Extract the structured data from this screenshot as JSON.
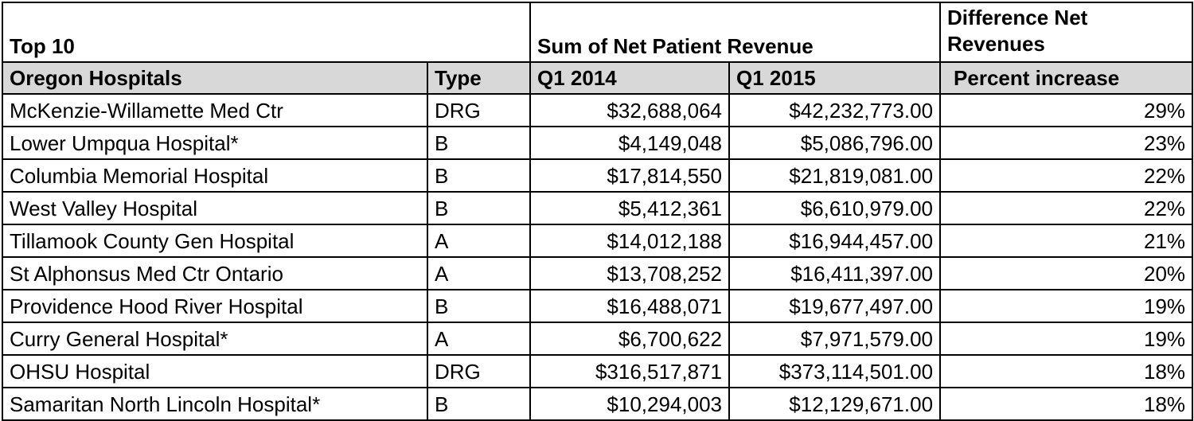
{
  "header": {
    "top_left": "Top 10",
    "sum_label": "Sum of Net Patient Revenue",
    "diff_label": "Difference Net Revenues"
  },
  "columns": [
    "Oregon Hospitals",
    "Type",
    "Q1 2014",
    "Q1 2015",
    "Percent increase"
  ],
  "chart_data": {
    "type": "table",
    "title": "Top 10",
    "columns": [
      "Oregon Hospitals",
      "Type",
      "Q1 2014",
      "Q1 2015",
      "Percent increase"
    ],
    "rows": [
      [
        "McKenzie-Willamette Med Ctr",
        "DRG",
        "$32,688,064",
        "$42,232,773.00",
        "29%"
      ],
      [
        "Lower Umpqua Hospital*",
        "B",
        "$4,149,048",
        "$5,086,796.00",
        "23%"
      ],
      [
        "Columbia Memorial Hospital",
        "B",
        "$17,814,550",
        "$21,819,081.00",
        "22%"
      ],
      [
        "West Valley Hospital",
        "B",
        "$5,412,361",
        "$6,610,979.00",
        "22%"
      ],
      [
        "Tillamook County Gen Hospital",
        "A",
        "$14,012,188",
        "$16,944,457.00",
        "21%"
      ],
      [
        "St Alphonsus Med Ctr Ontario",
        "A",
        "$13,708,252",
        "$16,411,397.00",
        "20%"
      ],
      [
        "Providence Hood River Hospital",
        "B",
        "$16,488,071",
        "$19,677,497.00",
        "19%"
      ],
      [
        "Curry General Hospital*",
        "A",
        "$6,700,622",
        "$7,971,579.00",
        "19%"
      ],
      [
        "OHSU Hospital",
        "DRG",
        "$316,517,871",
        "$373,114,501.00",
        "18%"
      ],
      [
        "Samaritan North Lincoln Hospital*",
        "B",
        "$10,294,003",
        "$12,129,671.00",
        "18%"
      ]
    ]
  }
}
